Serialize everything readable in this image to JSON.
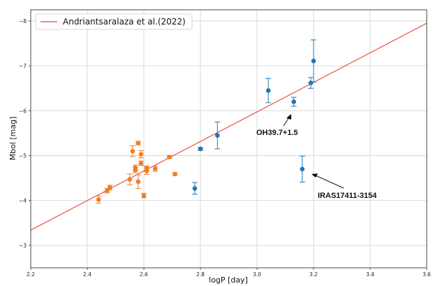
{
  "chart_data": {
    "type": "scatter",
    "xlabel": "logP [day]",
    "ylabel": "Mbol [mag]",
    "xlim": [
      2.2,
      3.6
    ],
    "ylim": [
      -2.5,
      -8.25
    ],
    "y_inverted": true,
    "grid": true,
    "legend_placement": "top-left",
    "x_ticks": [
      "2.2",
      "2.4",
      "2.6",
      "2.8",
      "3.0",
      "3.2",
      "3.4",
      "3.6"
    ],
    "y_ticks": [
      "−3",
      "−4",
      "−5",
      "−6",
      "−7",
      "−8"
    ],
    "fit_line": {
      "name": "Andriantsaralaza et al.(2022)",
      "color": "#e8443a",
      "x": [
        2.2,
        3.6
      ],
      "y": [
        -3.34,
        -7.95
      ]
    },
    "series": [
      {
        "color": "#1f77b4",
        "points": [
          {
            "x": 2.78,
            "y": -4.27,
            "err": 0.13
          },
          {
            "x": 2.8,
            "y": -5.15,
            "err": 0.03
          },
          {
            "x": 2.86,
            "y": -5.45,
            "err": 0.3
          },
          {
            "x": 3.04,
            "y": -6.45,
            "err": 0.27
          },
          {
            "x": 3.13,
            "y": -6.2,
            "err": 0.1
          },
          {
            "x": 3.16,
            "y": -4.7,
            "err": 0.29
          },
          {
            "x": 3.19,
            "y": -6.62,
            "err": 0.12
          },
          {
            "x": 3.2,
            "y": -7.11,
            "err": 0.47
          }
        ]
      },
      {
        "color": "#f07f25",
        "points": [
          {
            "x": 2.44,
            "y": -4.02,
            "err": 0.08
          },
          {
            "x": 2.47,
            "y": -4.22,
            "err": 0.05
          },
          {
            "x": 2.48,
            "y": -4.29,
            "err": 0.05
          },
          {
            "x": 2.55,
            "y": -4.47,
            "err": 0.12
          },
          {
            "x": 2.56,
            "y": -5.1,
            "err": 0.12
          },
          {
            "x": 2.57,
            "y": -4.68,
            "err": 0.06
          },
          {
            "x": 2.57,
            "y": -4.73,
            "err": 0.06
          },
          {
            "x": 2.58,
            "y": -5.28,
            "err": 0.04
          },
          {
            "x": 2.58,
            "y": -4.42,
            "err": 0.15
          },
          {
            "x": 2.59,
            "y": -5.03,
            "err": 0.08
          },
          {
            "x": 2.59,
            "y": -4.83,
            "err": 0.05
          },
          {
            "x": 2.6,
            "y": -4.11,
            "err": 0.05
          },
          {
            "x": 2.61,
            "y": -4.66,
            "err": 0.08
          },
          {
            "x": 2.61,
            "y": -4.72,
            "err": 0.05
          },
          {
            "x": 2.64,
            "y": -4.71,
            "err": 0.06
          },
          {
            "x": 2.69,
            "y": -4.97,
            "err": 0.03
          },
          {
            "x": 2.71,
            "y": -4.59,
            "err": 0.03
          }
        ]
      }
    ],
    "annotations": [
      {
        "text": "OH39.7+1.5",
        "x": 3.13,
        "y": -6.2
      },
      {
        "text": "IRAS17411-3154",
        "x": 3.16,
        "y": -4.7
      }
    ]
  }
}
